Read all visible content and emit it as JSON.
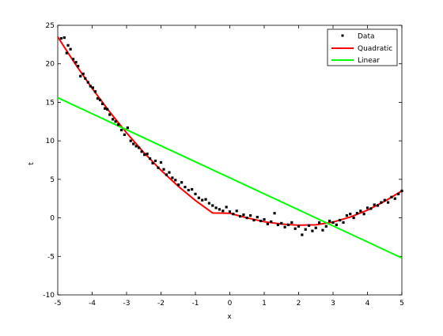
{
  "chart_data": {
    "type": "scatter",
    "title": "",
    "xlabel": "x",
    "ylabel": "t",
    "xlim": [
      -5,
      5
    ],
    "ylim": [
      -10,
      25
    ],
    "grid": false,
    "legend_position": "top-right",
    "x_ticks": [
      "-5",
      "-4",
      "-3",
      "-2",
      "-1",
      "0",
      "1",
      "2",
      "3",
      "4",
      "5"
    ],
    "y_ticks": [
      "-10",
      "-5",
      "0",
      "5",
      "10",
      "15",
      "20",
      "25"
    ],
    "series": [
      {
        "name": "Data",
        "kind": "scatter",
        "marker": "dot",
        "color": "#000000",
        "points": [
          [
            -4.9,
            23.3
          ],
          [
            -4.81,
            23.4
          ],
          [
            -4.74,
            21.4
          ],
          [
            -4.7,
            22.4
          ],
          [
            -4.63,
            21.9
          ],
          [
            -4.55,
            20.6
          ],
          [
            -4.47,
            20.2
          ],
          [
            -4.41,
            19.7
          ],
          [
            -4.34,
            18.4
          ],
          [
            -4.26,
            18.7
          ],
          [
            -4.2,
            18.1
          ],
          [
            -4.12,
            17.6
          ],
          [
            -4.05,
            17.1
          ],
          [
            -3.98,
            16.9
          ],
          [
            -3.91,
            16.4
          ],
          [
            -3.84,
            15.5
          ],
          [
            -3.77,
            15.3
          ],
          [
            -3.7,
            14.8
          ],
          [
            -3.63,
            14.2
          ],
          [
            -3.56,
            14.1
          ],
          [
            -3.49,
            13.4
          ],
          [
            -3.4,
            12.8
          ],
          [
            -3.32,
            12.5
          ],
          [
            -3.24,
            12.1
          ],
          [
            -3.15,
            11.4
          ],
          [
            -3.06,
            10.8
          ],
          [
            -2.97,
            11.7
          ],
          [
            -2.88,
            10.0
          ],
          [
            -2.8,
            9.6
          ],
          [
            -2.72,
            9.3
          ],
          [
            -2.64,
            9.1
          ],
          [
            -2.56,
            8.6
          ],
          [
            -2.48,
            8.2
          ],
          [
            -2.4,
            8.3
          ],
          [
            -2.32,
            7.7
          ],
          [
            -2.24,
            7.1
          ],
          [
            -2.16,
            7.4
          ],
          [
            -2.08,
            6.5
          ],
          [
            -2.0,
            7.2
          ],
          [
            -1.92,
            6.3
          ],
          [
            -1.84,
            5.6
          ],
          [
            -1.76,
            5.9
          ],
          [
            -1.67,
            5.2
          ],
          [
            -1.58,
            4.9
          ],
          [
            -1.49,
            4.3
          ],
          [
            -1.4,
            4.6
          ],
          [
            -1.3,
            4.0
          ],
          [
            -1.2,
            3.6
          ],
          [
            -1.1,
            3.7
          ],
          [
            -1.0,
            3.1
          ],
          [
            -0.9,
            2.6
          ],
          [
            -0.8,
            2.3
          ],
          [
            -0.7,
            2.4
          ],
          [
            -0.6,
            1.9
          ],
          [
            -0.5,
            1.6
          ],
          [
            -0.4,
            1.3
          ],
          [
            -0.3,
            1.1
          ],
          [
            -0.2,
            0.9
          ],
          [
            -0.1,
            1.4
          ],
          [
            0.0,
            0.8
          ],
          [
            0.1,
            0.5
          ],
          [
            0.2,
            0.9
          ],
          [
            0.3,
            0.2
          ],
          [
            0.4,
            0.4
          ],
          [
            0.5,
            0.0
          ],
          [
            0.6,
            0.3
          ],
          [
            0.7,
            -0.3
          ],
          [
            0.8,
            0.1
          ],
          [
            0.9,
            -0.4
          ],
          [
            1.0,
            -0.2
          ],
          [
            1.1,
            -0.8
          ],
          [
            1.2,
            -0.5
          ],
          [
            1.3,
            0.6
          ],
          [
            1.4,
            -0.9
          ],
          [
            1.5,
            -0.7
          ],
          [
            1.6,
            -1.2
          ],
          [
            1.7,
            -0.9
          ],
          [
            1.8,
            -0.6
          ],
          [
            1.9,
            -1.4
          ],
          [
            2.0,
            -1.1
          ],
          [
            2.1,
            -2.2
          ],
          [
            2.2,
            -1.5
          ],
          [
            2.3,
            -1.0
          ],
          [
            2.4,
            -1.7
          ],
          [
            2.5,
            -1.3
          ],
          [
            2.6,
            -0.6
          ],
          [
            2.7,
            -1.6
          ],
          [
            2.8,
            -1.1
          ],
          [
            2.9,
            -0.4
          ],
          [
            3.0,
            -0.6
          ],
          [
            3.1,
            -0.9
          ],
          [
            3.2,
            -0.3
          ],
          [
            3.3,
            -0.6
          ],
          [
            3.4,
            0.3
          ],
          [
            3.5,
            0.5
          ],
          [
            3.6,
            0.0
          ],
          [
            3.7,
            0.6
          ],
          [
            3.8,
            0.9
          ],
          [
            3.9,
            0.5
          ],
          [
            4.0,
            1.3
          ],
          [
            4.1,
            1.2
          ],
          [
            4.2,
            1.7
          ],
          [
            4.3,
            1.6
          ],
          [
            4.4,
            2.0
          ],
          [
            4.5,
            2.3
          ],
          [
            4.6,
            2.0
          ],
          [
            4.7,
            2.7
          ],
          [
            4.8,
            2.5
          ],
          [
            4.9,
            3.1
          ],
          [
            5.0,
            3.5
          ]
        ]
      },
      {
        "name": "Quadratic",
        "kind": "line",
        "color": "#ff0000",
        "points": [
          [
            -5.0,
            23.5
          ],
          [
            -4.5,
            20.04
          ],
          [
            -4.0,
            16.81
          ],
          [
            -3.5,
            13.81
          ],
          [
            -3.0,
            11.04
          ],
          [
            -2.5,
            8.5
          ],
          [
            -2.0,
            6.19
          ],
          [
            -1.5,
            4.11
          ],
          [
            -1.0,
            2.26
          ],
          [
            -0.5,
            0.64
          ],
          [
            0.0,
            0.6
          ],
          [
            0.5,
            0.0
          ],
          [
            1.0,
            -0.5
          ],
          [
            1.5,
            -0.8
          ],
          [
            2.0,
            -0.95
          ],
          [
            2.5,
            -0.9
          ],
          [
            3.0,
            -0.55
          ],
          [
            3.5,
            0.1
          ],
          [
            4.0,
            1.0
          ],
          [
            4.5,
            2.15
          ],
          [
            5.0,
            3.5
          ]
        ]
      },
      {
        "name": "Linear",
        "kind": "line",
        "color": "#00ff00",
        "points": [
          [
            -5.0,
            15.6
          ],
          [
            5.0,
            -5.2
          ]
        ]
      }
    ]
  }
}
